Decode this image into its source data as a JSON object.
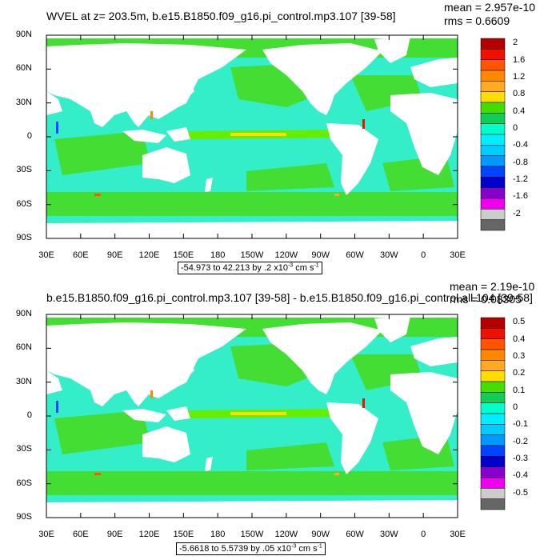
{
  "panels": [
    {
      "title": "WVEL at z= 203.5m, b.e15.B1850.f09_g16.pi_control.mp3.107 [39-58]",
      "stats": {
        "mean": "mean = 2.957e-10",
        "rms": "rms = 0.6609"
      },
      "range_label": {
        "text": "-54.973 to 42.213 by .2 x10",
        "exp": "-3",
        "unit": " cm s",
        "unit_exp": "-1"
      },
      "colorbar_labels": [
        "2",
        "1.6",
        "1.2",
        "0.8",
        "0.4",
        "0",
        "-0.4",
        "-0.8",
        "-1.2",
        "-1.6",
        "-2"
      ]
    },
    {
      "title": "b.e15.B1850.f09_g16.pi_control.mp3.107 [39-58] - b.e15.B1850.f09_g16.pi_control.all.104 [39-58]",
      "stats": {
        "mean": "mean = 2.19e-10",
        "rms": "rms = 0.08305"
      },
      "range_label": {
        "text": "-5.6618 to 5.5739 by .05 x10",
        "exp": "-3",
        "unit": " cm s",
        "unit_exp": "-1"
      },
      "colorbar_labels": [
        "0.5",
        "0.4",
        "0.3",
        "0.2",
        "0.1",
        "0",
        "-0.1",
        "-0.2",
        "-0.3",
        "-0.4",
        "-0.5"
      ]
    }
  ],
  "lat_labels": [
    "90N",
    "60N",
    "30N",
    "0",
    "30S",
    "60S",
    "90S"
  ],
  "lon_labels": [
    "30E",
    "60E",
    "90E",
    "120E",
    "150E",
    "180",
    "150W",
    "120W",
    "90W",
    "60W",
    "30W",
    "0",
    "30E"
  ],
  "colorbar_colors": [
    "#b40000",
    "#ee1100",
    "#ff5500",
    "#ff8800",
    "#ffaa22",
    "#ffdd00",
    "#44dd00",
    "#11cc55",
    "#00ffcc",
    "#00eeff",
    "#00ccff",
    "#0099ff",
    "#0044ff",
    "#0000cc",
    "#8800cc",
    "#ee00ee",
    "#cccccc",
    "#666666"
  ],
  "ocean_color": "#33eec8",
  "land_color": "#ffffff"
}
